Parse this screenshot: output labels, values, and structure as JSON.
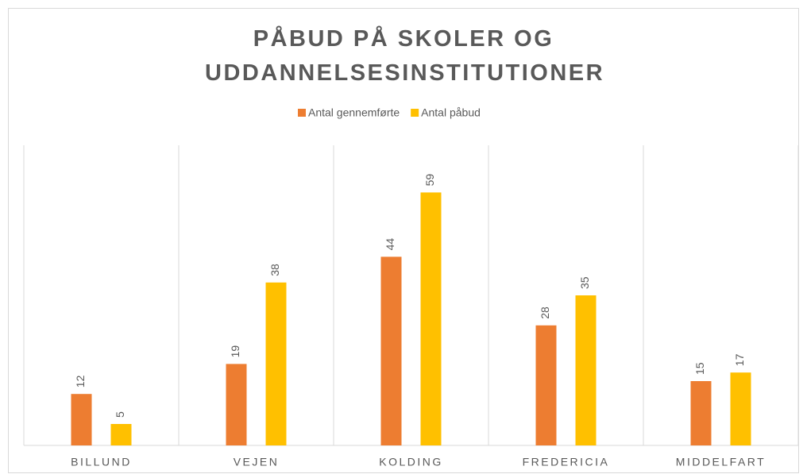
{
  "chart_data": {
    "type": "bar",
    "title": "PÅBUD PÅ SKOLER OG UDDANNELSESINSTITUTIONER",
    "categories": [
      "BILLUND",
      "VEJEN",
      "KOLDING",
      "FREDERICIA",
      "MIDDELFART"
    ],
    "series": [
      {
        "name": "Antal gennemførte",
        "color": "#ed7d31",
        "values": [
          12,
          19,
          44,
          28,
          15
        ]
      },
      {
        "name": "Antal påbud",
        "color": "#ffc000",
        "values": [
          5,
          38,
          59,
          35,
          17
        ]
      }
    ],
    "ylim": [
      0,
      70
    ],
    "legend": "top"
  }
}
